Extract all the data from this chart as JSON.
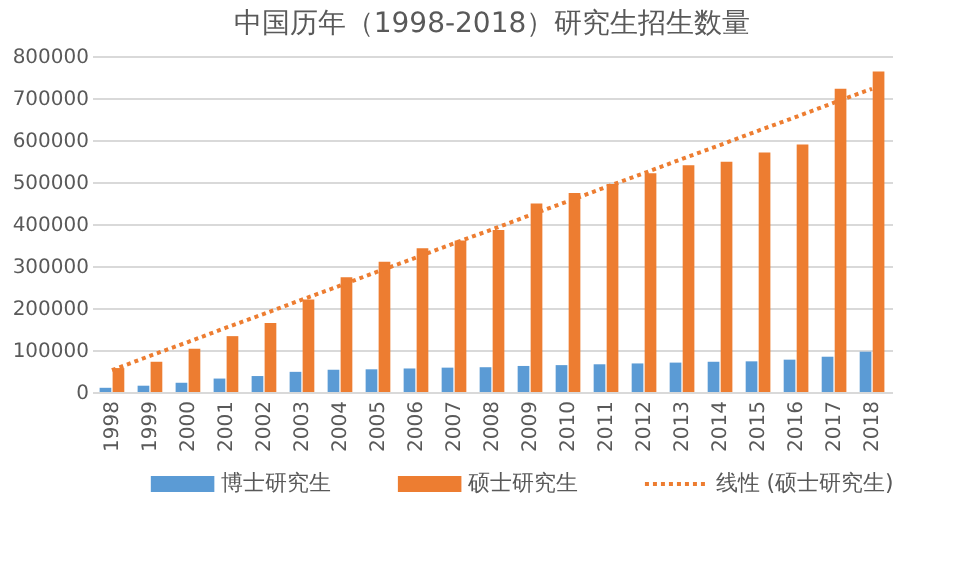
{
  "chart_data": {
    "type": "bar",
    "title": "中国历年（1998-2018）研究生招生数量",
    "categories": [
      "1998",
      "1999",
      "2000",
      "2001",
      "2002",
      "2003",
      "2004",
      "2005",
      "2006",
      "2007",
      "2008",
      "2009",
      "2010",
      "2011",
      "2012",
      "2013",
      "2014",
      "2015",
      "2016",
      "2017",
      "2018"
    ],
    "series": [
      {
        "name": "博士研究生",
        "color": "#5b9bd5",
        "values": [
          10000,
          15000,
          22000,
          32000,
          38000,
          48000,
          53000,
          54000,
          56000,
          58000,
          59000,
          62000,
          64000,
          66000,
          68000,
          70000,
          72000,
          73000,
          77000,
          84000,
          96000
        ]
      },
      {
        "name": "硕士研究生",
        "color": "#ed7d31",
        "values": [
          57000,
          72000,
          103000,
          133000,
          164000,
          220000,
          273000,
          310000,
          342000,
          361000,
          386000,
          449000,
          474000,
          495000,
          521000,
          540000,
          548000,
          570000,
          589000,
          722000,
          763000
        ]
      },
      {
        "name": "线性 (硕士研究生)",
        "type": "line",
        "line_style": "dotted",
        "color": "#ed7d31",
        "values": [
          52000,
          86000,
          119000,
          153000,
          186000,
          220000,
          253000,
          287000,
          320000,
          354000,
          387000,
          421000,
          454000,
          488000,
          521000,
          555000,
          588000,
          622000,
          655000,
          689000,
          722000
        ]
      }
    ],
    "ylim": [
      0,
      800000
    ],
    "yticks": [
      0,
      100000,
      200000,
      300000,
      400000,
      500000,
      600000,
      700000,
      800000
    ],
    "grid": "y",
    "legend": "bottom"
  }
}
